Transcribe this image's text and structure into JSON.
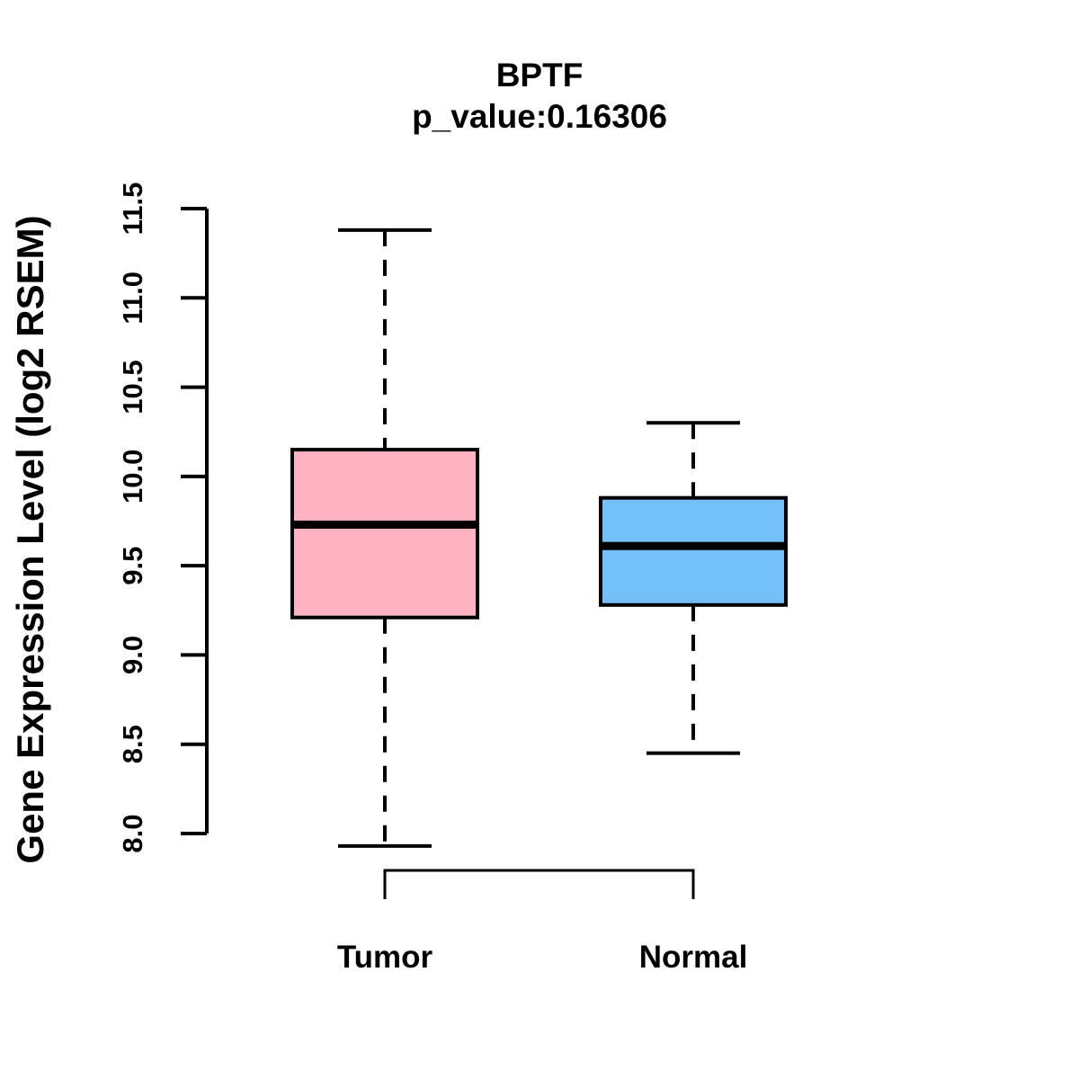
{
  "chart_data": {
    "type": "boxplot",
    "title": "BPTF",
    "subtitle": "p_value:0.16306",
    "p_value_text": "0.16306",
    "ylabel": "Gene Expression Level (log2 RSEM)",
    "ylim": [
      8.0,
      11.5
    ],
    "yticks": [
      "8.0",
      "8.5",
      "9.0",
      "9.5",
      "10.0",
      "10.5",
      "11.0",
      "11.5"
    ],
    "grid": false,
    "legend": "none",
    "categories": [
      "Tumor",
      "Normal"
    ],
    "series": [
      {
        "name": "Tumor",
        "color": "#FFB2C2",
        "whisker_low": 7.93,
        "q1": 9.21,
        "median": 9.73,
        "q3": 10.15,
        "whisker_high": 11.38
      },
      {
        "name": "Normal",
        "color": "#74BFF7",
        "whisker_low": 8.45,
        "q1": 9.28,
        "median": 9.61,
        "q3": 9.88,
        "whisker_high": 10.3
      }
    ],
    "comparison_bracket": {
      "between": [
        "Tumor",
        "Normal"
      ],
      "orientation": "below"
    },
    "colors": {
      "stroke": "#000000",
      "median_line": "#000000",
      "background": "#FFFFFF"
    }
  }
}
